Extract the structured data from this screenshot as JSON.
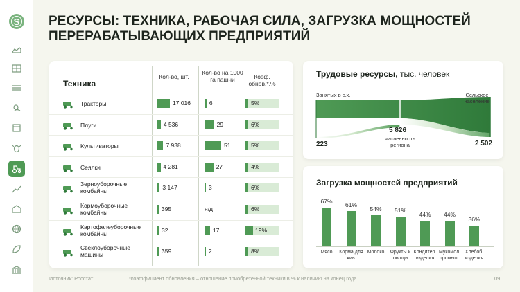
{
  "header": {
    "title": "РЕСУРСЫ: ТЕХНИКА, РАБОЧАЯ СИЛА, ЗАГРУЗКА МОЩНОСТЕЙ ПЕРЕРАБАТЫВАЮЩИХ ПРЕДПРИЯТИЙ"
  },
  "sidebar": {
    "logo": "S",
    "icons": [
      "map-icon",
      "table-icon",
      "field-icon",
      "weather-icon",
      "calendar-icon",
      "bug-icon",
      "tractor-icon",
      "chart-icon",
      "warehouse-icon",
      "globe-icon",
      "leaf-icon",
      "bank-icon"
    ]
  },
  "machinery": {
    "title": "Техника",
    "col_count": "Кол-во, шт.",
    "col_per1000": "Кол-во на 1000 га пашни",
    "col_renew": "Коэф. обнов.*,%",
    "rows": [
      {
        "name": "Тракторы",
        "count": "17 016",
        "count_frac": 1.0,
        "per1000": "6",
        "per1000_frac": 0.12,
        "renew": "5%",
        "renew_frac": 0.26
      },
      {
        "name": "Плуги",
        "count": "4 536",
        "count_frac": 0.27,
        "per1000": "29",
        "per1000_frac": 0.57,
        "renew": "6%",
        "renew_frac": 0.32
      },
      {
        "name": "Культиваторы",
        "count": "7 938",
        "count_frac": 0.47,
        "per1000": "51",
        "per1000_frac": 1.0,
        "renew": "5%",
        "renew_frac": 0.26
      },
      {
        "name": "Сеялки",
        "count": "4 281",
        "count_frac": 0.25,
        "per1000": "27",
        "per1000_frac": 0.53,
        "renew": "4%",
        "renew_frac": 0.21
      },
      {
        "name": "Зерноуборочные комбайны",
        "count": "3 147",
        "count_frac": 0.19,
        "per1000": "3",
        "per1000_frac": 0.06,
        "renew": "6%",
        "renew_frac": 0.32
      },
      {
        "name": "Кормоуборочные комбайны",
        "count": "395",
        "count_frac": 0.02,
        "per1000": "н/д",
        "per1000_frac": 0,
        "renew": "6%",
        "renew_frac": 0.32
      },
      {
        "name": "Картофелеуборочные комбайны",
        "count": "32",
        "count_frac": 0.0,
        "per1000": "17",
        "per1000_frac": 0.33,
        "renew": "19%",
        "renew_frac": 1.0
      },
      {
        "name": "Свеклоуборочные машины",
        "count": "359",
        "count_frac": 0.02,
        "per1000": "2",
        "per1000_frac": 0.04,
        "renew": "8%",
        "renew_frac": 0.42
      }
    ]
  },
  "labor": {
    "title_bold": "Трудовые ресурсы,",
    "title_rest": " тыс. человек",
    "left_label": "Занятых в с.х.",
    "right_label": "Сельское население",
    "left_value": "223",
    "mid_value": "5 826",
    "mid_label": "численность региона",
    "right_value": "2 502"
  },
  "load": {
    "title": "Загрузка мощностей предприятий",
    "chart_data": {
      "type": "bar",
      "categories": [
        "Мясо",
        "Корма для жив.",
        "Молоко",
        "Фрукты и овощи",
        "Кондитер. изделия",
        "Мукомол. промыш.",
        "Хлебоб. изделия"
      ],
      "values": [
        67,
        61,
        54,
        51,
        44,
        44,
        36
      ],
      "labels": [
        "67%",
        "61%",
        "54%",
        "51%",
        "44%",
        "44%",
        "36%"
      ]
    }
  },
  "footer": {
    "source": "Источник: Росстат",
    "note": "*коэффициент обновления – отношение приобретенной техники в % к наличию на конец года",
    "page": "09"
  }
}
